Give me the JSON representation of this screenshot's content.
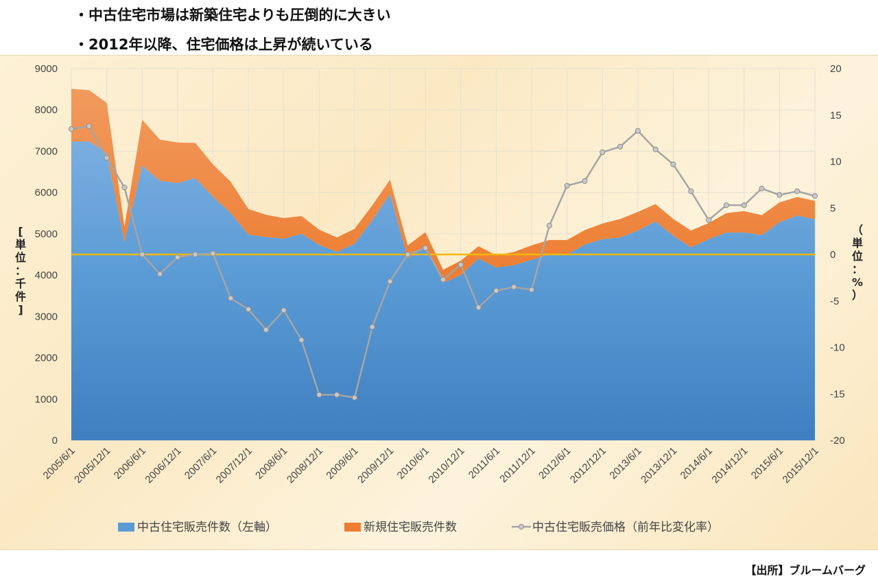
{
  "bullets": [
    "・中古住宅市場は新築住宅よりも圧倒的に大きい",
    "・2012年以降、住宅価格は上昇が続いている"
  ],
  "source": "【出所】ブルームバーグ",
  "colors": {
    "existing": "#5b9bd5",
    "existing_dark": "#3f7fc0",
    "new": "#ed7d31",
    "price": "#a5a5a5",
    "zero_line": "#f5b800"
  },
  "chart_data": {
    "type": "area",
    "x_tick_labels": [
      "2005/6/1",
      "2005/12/1",
      "2006/6/1",
      "2006/12/1",
      "2007/6/1",
      "2007/12/1",
      "2008/6/1",
      "2008/12/1",
      "2009/6/1",
      "2009/12/1",
      "2010/6/1",
      "2010/12/1",
      "2011/6/1",
      "2011/12/1",
      "2012/6/1",
      "2012/12/1",
      "2013/6/1",
      "2013/12/1",
      "2014/6/1",
      "2014/12/1",
      "2015/6/1",
      "2015/12/1"
    ],
    "y_left": {
      "title": "[単位：千件]",
      "min": 0,
      "max": 9000,
      "step": 1000
    },
    "y_right": {
      "title": "（単位：%）",
      "min": -20,
      "max": 20,
      "step": 5
    },
    "series": [
      {
        "name": "中古住宅販売件数（左軸）",
        "type": "area",
        "axis": "left",
        "values": [
          7230,
          7240,
          6950,
          4800,
          6650,
          6280,
          6230,
          6350,
          5900,
          5500,
          4980,
          4920,
          4880,
          5000,
          4730,
          4560,
          4760,
          5330,
          5960,
          4400,
          4700,
          3810,
          4000,
          4400,
          4180,
          4240,
          4370,
          4500,
          4500,
          4740,
          4870,
          4910,
          5080,
          5300,
          4950,
          4670,
          4870,
          5030,
          5030,
          4970,
          5280,
          5440,
          5350
        ],
        "stacked": true
      },
      {
        "name": "新規住宅販売件数",
        "type": "area",
        "axis": "left",
        "values": [
          1280,
          1240,
          1220,
          380,
          1110,
          1000,
          980,
          850,
          780,
          760,
          620,
          540,
          500,
          430,
          370,
          350,
          360,
          360,
          350,
          320,
          340,
          320,
          350,
          300,
          300,
          320,
          350,
          350,
          350,
          350,
          380,
          450,
          450,
          420,
          410,
          410,
          390,
          470,
          520,
          480,
          480,
          450,
          450
        ],
        "stacked": true
      },
      {
        "name": "中古住宅販売価格（前年比変化率）",
        "type": "line",
        "axis": "right",
        "values": [
          13.5,
          13.8,
          10.4,
          7.2,
          0.0,
          -2.1,
          -0.3,
          0.0,
          0.1,
          -4.7,
          -5.9,
          -8.1,
          -6.0,
          -9.2,
          -15.1,
          -15.1,
          -15.4,
          -7.8,
          -2.9,
          0.0,
          0.7,
          -2.7,
          -1.1,
          -5.7,
          -3.9,
          -3.5,
          -3.8,
          3.1,
          7.4,
          7.9,
          11.0,
          11.6,
          13.3,
          11.3,
          9.7,
          6.8,
          3.7,
          5.3,
          5.3,
          7.1,
          6.4,
          6.8,
          6.3
        ]
      }
    ],
    "legend_position": "bottom",
    "grid": true
  }
}
